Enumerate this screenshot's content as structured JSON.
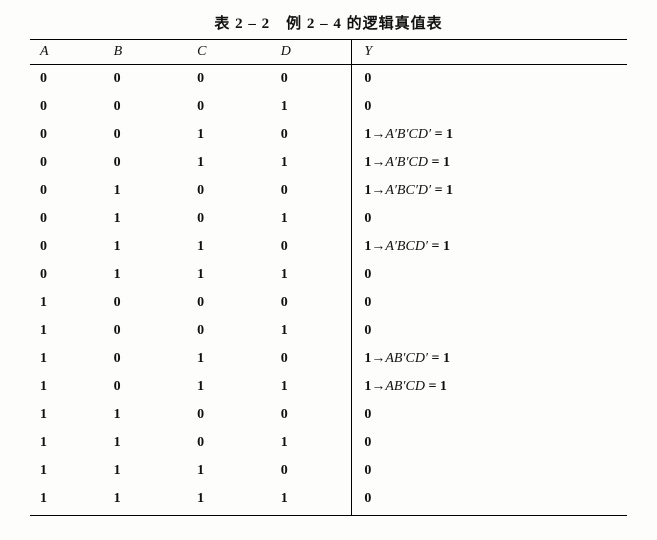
{
  "title": "表 2 – 2　例 2 – 4 的逻辑真值表",
  "headers": {
    "A": "A",
    "B": "B",
    "C": "C",
    "D": "D",
    "Y": "Y"
  },
  "rows": [
    {
      "A": "0",
      "B": "0",
      "C": "0",
      "D": "0",
      "Y": {
        "text": "0"
      }
    },
    {
      "A": "0",
      "B": "0",
      "C": "0",
      "D": "1",
      "Y": {
        "text": "0"
      }
    },
    {
      "A": "0",
      "B": "0",
      "C": "1",
      "D": "0",
      "Y": {
        "lead": "1→",
        "term": "A′B′CD′",
        "eq": " = 1"
      }
    },
    {
      "A": "0",
      "B": "0",
      "C": "1",
      "D": "1",
      "Y": {
        "lead": "1→",
        "term": "A′B′CD",
        "eq": " = 1"
      }
    },
    {
      "A": "0",
      "B": "1",
      "C": "0",
      "D": "0",
      "Y": {
        "lead": "1→",
        "term": "A′BC′D′",
        "eq": " = 1"
      }
    },
    {
      "A": "0",
      "B": "1",
      "C": "0",
      "D": "1",
      "Y": {
        "text": "0"
      }
    },
    {
      "A": "0",
      "B": "1",
      "C": "1",
      "D": "0",
      "Y": {
        "lead": "1→",
        "term": "A′BCD′",
        "eq": " = 1"
      }
    },
    {
      "A": "0",
      "B": "1",
      "C": "1",
      "D": "1",
      "Y": {
        "text": "0"
      }
    },
    {
      "A": "1",
      "B": "0",
      "C": "0",
      "D": "0",
      "Y": {
        "text": "0"
      }
    },
    {
      "A": "1",
      "B": "0",
      "C": "0",
      "D": "1",
      "Y": {
        "text": "0"
      }
    },
    {
      "A": "1",
      "B": "0",
      "C": "1",
      "D": "0",
      "Y": {
        "lead": "1→",
        "term": "AB′CD′",
        "eq": " = 1"
      }
    },
    {
      "A": "1",
      "B": "0",
      "C": "1",
      "D": "1",
      "Y": {
        "lead": "1→",
        "term": "AB′CD",
        "eq": " = 1"
      }
    },
    {
      "A": "1",
      "B": "1",
      "C": "0",
      "D": "0",
      "Y": {
        "text": "0"
      }
    },
    {
      "A": "1",
      "B": "1",
      "C": "0",
      "D": "1",
      "Y": {
        "text": "0"
      }
    },
    {
      "A": "1",
      "B": "1",
      "C": "1",
      "D": "0",
      "Y": {
        "text": "0"
      }
    },
    {
      "A": "1",
      "B": "1",
      "C": "1",
      "D": "1",
      "Y": {
        "text": "0"
      }
    }
  ]
}
